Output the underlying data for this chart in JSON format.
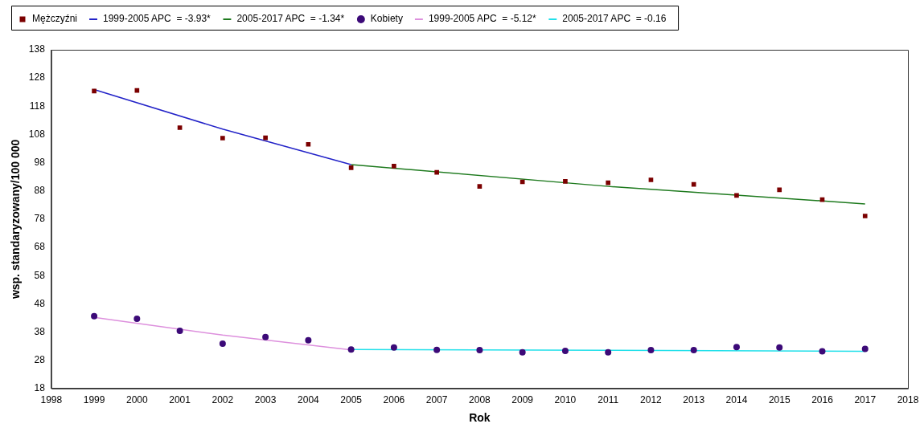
{
  "chart_data": {
    "type": "scatter",
    "xlabel": "Rok",
    "ylabel": "wsp. standaryzowany/100 000",
    "x": [
      1999,
      2000,
      2001,
      2002,
      2003,
      2004,
      2005,
      2006,
      2007,
      2008,
      2009,
      2010,
      2011,
      2012,
      2013,
      2014,
      2015,
      2016,
      2017
    ],
    "xlim": [
      1998,
      2018
    ],
    "xticks": [
      1998,
      1999,
      2000,
      2001,
      2002,
      2003,
      2004,
      2005,
      2006,
      2007,
      2008,
      2009,
      2010,
      2011,
      2012,
      2013,
      2014,
      2015,
      2016,
      2017,
      2018
    ],
    "ylim": [
      18,
      138
    ],
    "yticks": [
      18,
      28,
      38,
      48,
      58,
      68,
      78,
      88,
      98,
      108,
      118,
      128,
      138
    ],
    "grid": false,
    "legend": "top left",
    "series": [
      {
        "name": "Mężczyźni",
        "marker": "square",
        "color": "#7b0000",
        "values": [
          123.4,
          123.6,
          110.4,
          106.7,
          106.8,
          104.5,
          96.2,
          96.8,
          94.6,
          89.6,
          91.2,
          91.4,
          90.9,
          91.9,
          90.3,
          86.4,
          88.4,
          84.9,
          79.1
        ]
      },
      {
        "name": "1999-2005 APC  = -3.93*",
        "type": "line",
        "marker": "none",
        "color": "#2323c8",
        "x": [
          1999,
          2002,
          2005
        ],
        "values": [
          123.9,
          109.9,
          97.3
        ]
      },
      {
        "name": "2005-2017 APC  = -1.34*",
        "type": "line",
        "marker": "none",
        "color": "#1e7a1e",
        "x": [
          2005,
          2011,
          2017
        ],
        "values": [
          97.3,
          89.6,
          83.4
        ]
      },
      {
        "name": "Kobiety",
        "marker": "circle",
        "color": "#3c0a78",
        "values": [
          43.6,
          42.7,
          38.4,
          33.9,
          36.2,
          35.1,
          31.8,
          32.5,
          31.7,
          31.6,
          30.8,
          31.3,
          30.8,
          31.6,
          31.6,
          32.7,
          32.5,
          31.2,
          32.0
        ]
      },
      {
        "name": "1999-2005 APC  = -5.12*",
        "type": "line",
        "marker": "none",
        "color": "#dd90dd",
        "x": [
          1999,
          2002,
          2005
        ],
        "values": [
          43.2,
          36.9,
          31.7
        ]
      },
      {
        "name": "2005-2017 APC  = -0.16",
        "type": "line",
        "marker": "none",
        "color": "#22e0ea",
        "x": [
          2005,
          2011,
          2017
        ],
        "values": [
          31.8,
          31.5,
          31.2
        ]
      }
    ]
  }
}
